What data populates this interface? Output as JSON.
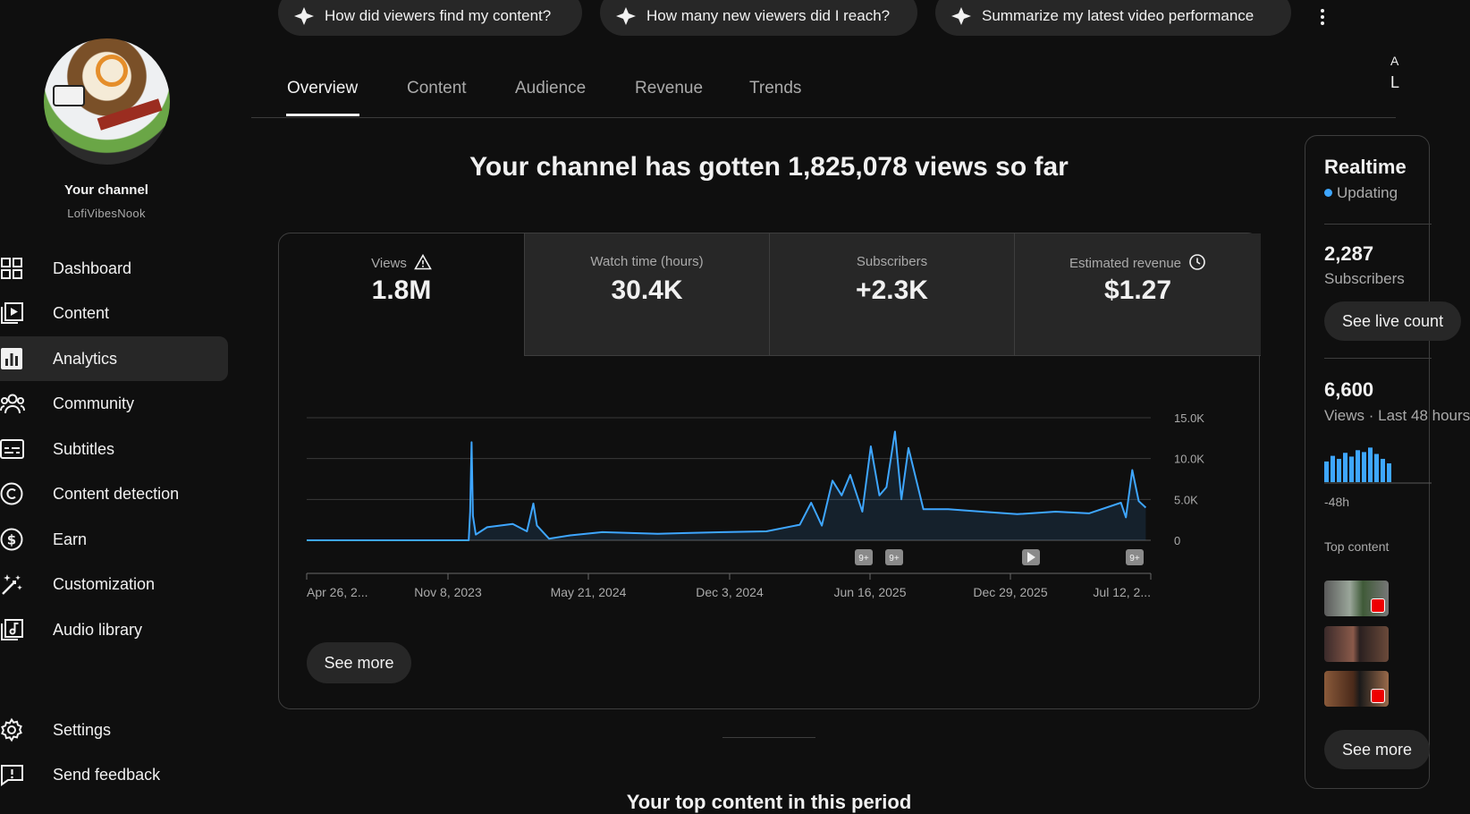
{
  "channel": {
    "title": "Your channel",
    "handle": "LofiVibesNook"
  },
  "sidebar": {
    "items": [
      {
        "label": "Dashboard",
        "icon": "dashboard-icon"
      },
      {
        "label": "Content",
        "icon": "content-icon"
      },
      {
        "label": "Analytics",
        "icon": "analytics-icon",
        "active": true
      },
      {
        "label": "Community",
        "icon": "community-icon"
      },
      {
        "label": "Subtitles",
        "icon": "subtitles-icon"
      },
      {
        "label": "Content detection",
        "icon": "copyright-icon"
      },
      {
        "label": "Earn",
        "icon": "dollar-icon"
      },
      {
        "label": "Customization",
        "icon": "magic-wand-icon"
      },
      {
        "label": "Audio library",
        "icon": "audio-library-icon"
      }
    ],
    "bottom": [
      {
        "label": "Settings",
        "icon": "gear-icon"
      },
      {
        "label": "Send feedback",
        "icon": "feedback-icon"
      }
    ]
  },
  "prompts": [
    "How did viewers find my content?",
    "How many new viewers did I reach?",
    "Summarize my latest video performance"
  ],
  "tabs": [
    "Overview",
    "Content",
    "Audience",
    "Revenue",
    "Trends"
  ],
  "active_tab": "Overview",
  "edge_fragments": {
    "a": "A",
    "l": "L"
  },
  "headline": "Your channel has gotten 1,825,078 views so far",
  "metrics": [
    {
      "label": "Views",
      "value": "1.8M",
      "icon": "warning-icon",
      "selected": true
    },
    {
      "label": "Watch time (hours)",
      "value": "30.4K"
    },
    {
      "label": "Subscribers",
      "value": "+2.3K"
    },
    {
      "label": "Estimated revenue",
      "value": "$1.27",
      "icon": "clock-icon"
    }
  ],
  "see_more": "See more",
  "chart_data": {
    "type": "area",
    "x_tick_labels": [
      "Apr 26, 2...",
      "Nov 8, 2023",
      "May 21, 2024",
      "Dec 3, 2024",
      "Jun 16, 2025",
      "Dec 29, 2025",
      "Jul 12, 2..."
    ],
    "y_tick_labels": [
      "0",
      "5.0K",
      "10.0K",
      "15.0K"
    ],
    "ylim": [
      0,
      15000
    ],
    "grid": true,
    "series_color": "#3ea6ff",
    "markers": [
      "9+",
      "9+",
      "play",
      "9+"
    ],
    "x": [
      "2023-04-26",
      "2023-08-01",
      "2023-12-10",
      "2023-12-12",
      "2023-12-14",
      "2023-12-16",
      "2023-12-20",
      "2024-01-05",
      "2024-02-10",
      "2024-03-01",
      "2024-03-10",
      "2024-03-15",
      "2024-04-01",
      "2024-05-01",
      "2024-06-15",
      "2024-09-01",
      "2024-12-03",
      "2025-02-01",
      "2025-03-20",
      "2025-04-05",
      "2025-04-20",
      "2025-05-05",
      "2025-05-18",
      "2025-05-30",
      "2025-06-16",
      "2025-06-28",
      "2025-07-10",
      "2025-07-20",
      "2025-08-01",
      "2025-08-10",
      "2025-08-20",
      "2025-09-10",
      "2025-10-15",
      "2025-12-01",
      "2026-01-20",
      "2026-03-15",
      "2026-05-01",
      "2026-06-15",
      "2026-06-22",
      "2026-07-01",
      "2026-07-10",
      "2026-07-20"
    ],
    "y": [
      0,
      0,
      0,
      3500,
      12000,
      3000,
      700,
      1600,
      2000,
      1100,
      4500,
      1800,
      200,
      600,
      1000,
      800,
      1000,
      1100,
      1900,
      4600,
      1800,
      7300,
      5500,
      8000,
      3500,
      11500,
      5500,
      6500,
      13300,
      5000,
      11300,
      3800,
      3800,
      3500,
      3200,
      3500,
      3300,
      4600,
      2800,
      8600,
      4800,
      4000
    ]
  },
  "realtime": {
    "title": "Realtime",
    "status": "Updating",
    "subscribers_value": "2,287",
    "subscribers_label": "Subscribers",
    "see_live_label": "See live count",
    "views_value": "6,600",
    "views_label": "Views · Last 48 hours",
    "bars": [
      0.55,
      0.7,
      0.62,
      0.78,
      0.68,
      0.85,
      0.8,
      0.92,
      0.75,
      0.62,
      0.5
    ],
    "axis_label": "-48h",
    "top_content_label": "Top content",
    "see_more_label": "See more"
  },
  "bottom_title": "Your top content in this period"
}
